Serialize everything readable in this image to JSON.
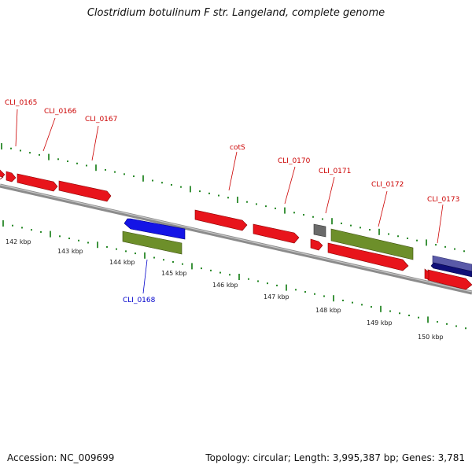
{
  "title": "Clostridium botulinum F str. Langeland, complete genome",
  "footer": {
    "accession": "Accession: NC_009699",
    "stats": "Topology: circular; Length: 3,995,387 bp; Genes: 3,781"
  },
  "colors": {
    "forward_gene": "#e8141b",
    "reverse_gene": "#1414e6",
    "rna": "#6d8f2a",
    "other": "#6a6a6a",
    "forward_label": "#cc0000",
    "reverse_label": "#0000cc",
    "tick": "#0e7a0e"
  },
  "scale_labels": [
    "142 kbp",
    "143 kbp",
    "144 kbp",
    "145 kbp",
    "146 kbp",
    "147 kbp",
    "148 kbp",
    "149 kbp",
    "150 kbp"
  ],
  "forward_labels": [
    "CLI_0165",
    "CLI_0166",
    "CLI_0167",
    "cotS",
    "CLI_0170",
    "CLI_0171",
    "CLI_0172",
    "CLI_0173"
  ],
  "reverse_labels": [
    "CLI_0168"
  ]
}
